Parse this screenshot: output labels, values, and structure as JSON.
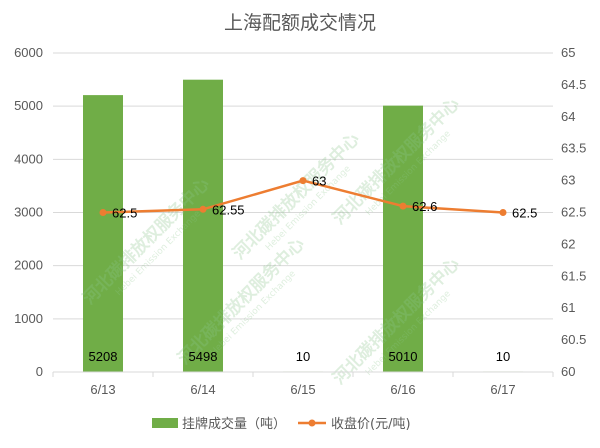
{
  "chart_data": {
    "type": "bar",
    "title": "上海配额成交情况",
    "categories": [
      "6/13",
      "6/14",
      "6/15",
      "6/16",
      "6/17"
    ],
    "series": [
      {
        "name": "挂牌成交量（吨）",
        "type": "bar",
        "axis": "left",
        "color": "#70ad47",
        "values": [
          5208,
          5498,
          10,
          5010,
          10
        ],
        "labels": [
          "5208",
          "5498",
          "10",
          "5010",
          "10"
        ]
      },
      {
        "name": "收盘价(元/吨)",
        "type": "line",
        "axis": "right",
        "color": "#ed7d31",
        "values": [
          62.5,
          62.55,
          63,
          62.6,
          62.5
        ],
        "labels": [
          "62.5",
          "62.55",
          "63",
          "62.6",
          "62.5"
        ]
      }
    ],
    "y_left": {
      "min": 0,
      "max": 6000,
      "ticks": [
        "0",
        "1000",
        "2000",
        "3000",
        "4000",
        "5000",
        "6000"
      ]
    },
    "y_right": {
      "min": 60,
      "max": 65,
      "ticks": [
        "60",
        "60.5",
        "61",
        "61.5",
        "62",
        "62.5",
        "63",
        "63.5",
        "64",
        "64.5",
        "65"
      ]
    },
    "grid": true,
    "legend": "bottom"
  },
  "watermark": {
    "cn": "河北碳排放权服务中心",
    "en": "Hebei Emission Exchange"
  }
}
